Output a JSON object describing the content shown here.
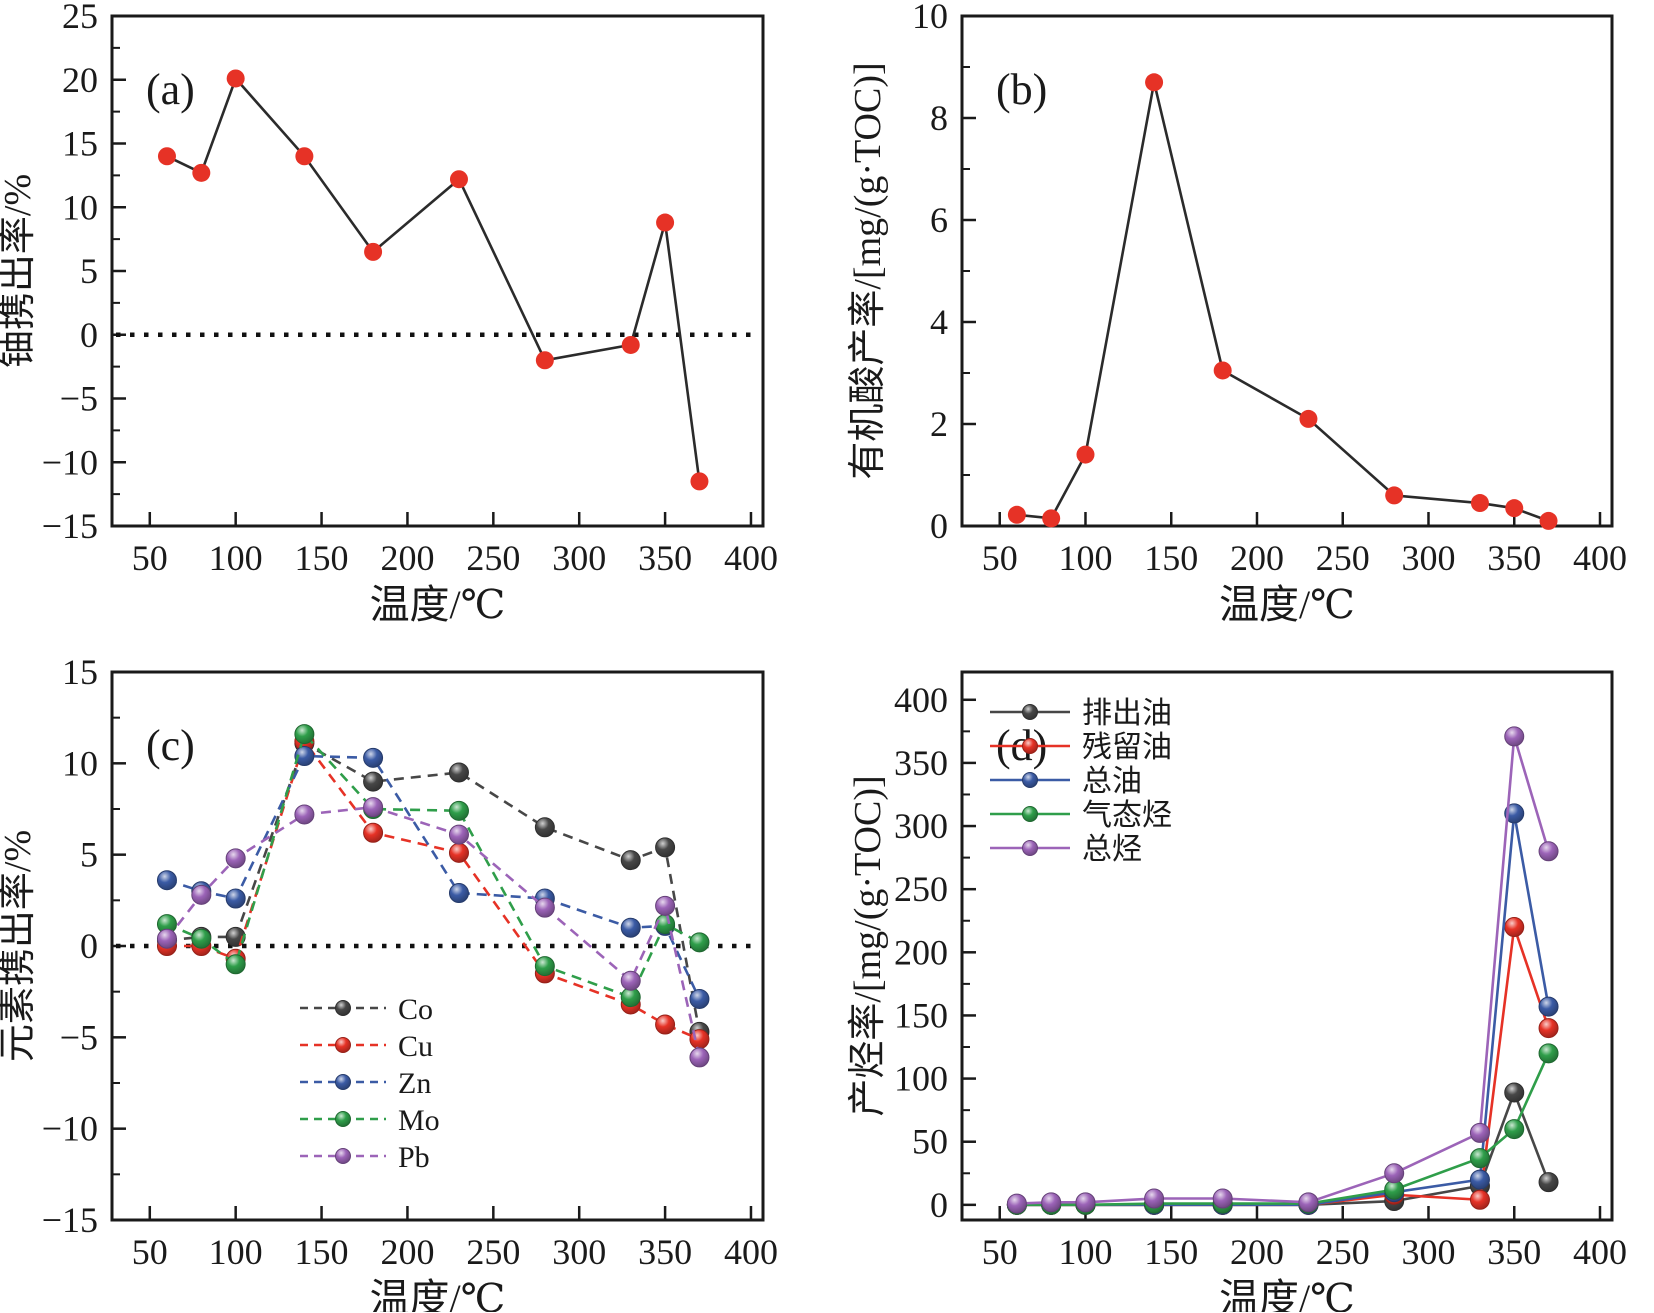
{
  "figure": {
    "background": "#ffffff",
    "axis_color": "#1a1a1a",
    "panels_order": [
      "a",
      "b",
      "c",
      "d"
    ]
  },
  "chart_data": [
    {
      "id": "a",
      "type": "line",
      "panel_label": "(a)",
      "xlabel": "温度/℃",
      "ylabel": "铀携出率/%",
      "x_domain": [
        28,
        407
      ],
      "y_domain": [
        -15,
        25
      ],
      "x_ticks": [
        50,
        100,
        150,
        200,
        250,
        300,
        350,
        400
      ],
      "x_tick_labels": [
        "50",
        "100",
        "150",
        "200",
        "250",
        "300",
        "350",
        "400"
      ],
      "y_ticks": [
        -15,
        -10,
        -5,
        0,
        5,
        10,
        15,
        20,
        25
      ],
      "y_tick_labels": [
        "−15",
        "−10",
        "−5",
        "0",
        "5",
        "10",
        "15",
        "20",
        "25"
      ],
      "y_minor_step": 2.5,
      "zero_line": true,
      "line_style": "solid",
      "marker_style": "flat",
      "line_color": "#2b2b2b",
      "x": [
        60,
        80,
        100,
        140,
        180,
        230,
        280,
        330,
        350,
        370
      ],
      "series": [
        {
          "name": "铀携出率",
          "color": "#e63226",
          "values": [
            14.0,
            12.7,
            20.1,
            14.0,
            6.5,
            12.2,
            -2.0,
            -0.8,
            8.8,
            -11.5
          ]
        }
      ],
      "legend": null
    },
    {
      "id": "b",
      "type": "line",
      "panel_label": "(b)",
      "xlabel": "温度/℃",
      "ylabel": "有机酸产率/[mg/(g·TOC)]",
      "x_domain": [
        28,
        407
      ],
      "y_domain": [
        0,
        10
      ],
      "x_ticks": [
        50,
        100,
        150,
        200,
        250,
        300,
        350,
        400
      ],
      "x_tick_labels": [
        "50",
        "100",
        "150",
        "200",
        "250",
        "300",
        "350",
        "400"
      ],
      "y_ticks": [
        0,
        2,
        4,
        6,
        8,
        10
      ],
      "y_tick_labels": [
        "0",
        "2",
        "4",
        "6",
        "8",
        "10"
      ],
      "y_minor_step": 1,
      "zero_line": false,
      "line_style": "solid",
      "marker_style": "flat",
      "line_color": "#2b2b2b",
      "x": [
        60,
        80,
        100,
        140,
        180,
        230,
        280,
        330,
        350,
        370
      ],
      "series": [
        {
          "name": "有机酸产率",
          "color": "#e63226",
          "values": [
            0.22,
            0.15,
            1.4,
            8.7,
            3.05,
            2.1,
            0.6,
            0.45,
            0.35,
            0.1
          ]
        }
      ],
      "legend": null
    },
    {
      "id": "c",
      "type": "line",
      "panel_label": "(c)",
      "xlabel": "温度/℃",
      "ylabel": "元素携出率/%",
      "x_domain": [
        28,
        407
      ],
      "y_domain": [
        -15,
        15
      ],
      "x_ticks": [
        50,
        100,
        150,
        200,
        250,
        300,
        350,
        400
      ],
      "x_tick_labels": [
        "50",
        "100",
        "150",
        "200",
        "250",
        "300",
        "350",
        "400"
      ],
      "y_ticks": [
        -15,
        -10,
        -5,
        0,
        5,
        10,
        15
      ],
      "y_tick_labels": [
        "−15",
        "−10",
        "−5",
        "0",
        "5",
        "10",
        "15"
      ],
      "y_minor_step": 2.5,
      "zero_line": true,
      "line_style": "dashed",
      "marker_style": "sphere",
      "line_color": null,
      "x": [
        60,
        80,
        100,
        140,
        180,
        230,
        280,
        330,
        350,
        370
      ],
      "series": [
        {
          "name": "Co",
          "color": "#474747",
          "values": [
            0.3,
            0.5,
            0.5,
            11.1,
            9.0,
            9.5,
            6.5,
            4.7,
            5.4,
            -4.7
          ]
        },
        {
          "name": "Cu",
          "color": "#e63226",
          "values": [
            0.0,
            0.0,
            -0.7,
            11.2,
            6.2,
            5.1,
            -1.5,
            -3.2,
            -4.3,
            -5.1
          ]
        },
        {
          "name": "Zn",
          "color": "#3b5ba5",
          "values": [
            3.6,
            3.0,
            2.6,
            10.4,
            10.3,
            2.9,
            2.6,
            1.0,
            1.1,
            -2.9
          ]
        },
        {
          "name": "Mo",
          "color": "#2f9e4a",
          "values": [
            1.2,
            0.4,
            -1.0,
            11.6,
            7.5,
            7.4,
            -1.1,
            -2.8,
            1.2,
            0.2
          ]
        },
        {
          "name": "Pb",
          "color": "#9c64b8",
          "values": [
            0.4,
            2.8,
            4.8,
            7.2,
            7.6,
            6.1,
            2.1,
            -1.9,
            2.2,
            -6.1
          ]
        }
      ],
      "legend": {
        "position": "bottom-center"
      }
    },
    {
      "id": "d",
      "type": "line",
      "panel_label": "(d)",
      "xlabel": "温度/℃",
      "ylabel": "产烃率/[mg/(g·TOC)]",
      "x_domain": [
        28,
        407
      ],
      "y_domain": [
        -12,
        422
      ],
      "x_ticks": [
        50,
        100,
        150,
        200,
        250,
        300,
        350,
        400
      ],
      "x_tick_labels": [
        "50",
        "100",
        "150",
        "200",
        "250",
        "300",
        "350",
        "400"
      ],
      "y_ticks": [
        0,
        50,
        100,
        150,
        200,
        250,
        300,
        350,
        400
      ],
      "y_tick_labels": [
        "0",
        "50",
        "100",
        "150",
        "200",
        "250",
        "300",
        "350",
        "400"
      ],
      "y_minor_step": 25,
      "zero_line": false,
      "line_style": "solid",
      "marker_style": "sphere",
      "line_color": null,
      "x": [
        60,
        80,
        100,
        140,
        180,
        230,
        280,
        330,
        350,
        370
      ],
      "series": [
        {
          "name": "排出油",
          "color": "#474747",
          "values": [
            0,
            0,
            0,
            0,
            0,
            0,
            3,
            15,
            89,
            18
          ]
        },
        {
          "name": "残留油",
          "color": "#e63226",
          "values": [
            0,
            0,
            0,
            0,
            0,
            0,
            8,
            4,
            220,
            140
          ]
        },
        {
          "name": "总油",
          "color": "#3b5ba5",
          "values": [
            0,
            0,
            0,
            0,
            0,
            0,
            10,
            20,
            310,
            157
          ]
        },
        {
          "name": "气态烃",
          "color": "#2f9e4a",
          "values": [
            0,
            0,
            0,
            1,
            1,
            1,
            12,
            37,
            60,
            120
          ]
        },
        {
          "name": "总烃",
          "color": "#9c64b8",
          "values": [
            1,
            2,
            2,
            5,
            5,
            2,
            25,
            57,
            371,
            280
          ]
        }
      ],
      "legend": {
        "position": "top-left"
      }
    }
  ]
}
